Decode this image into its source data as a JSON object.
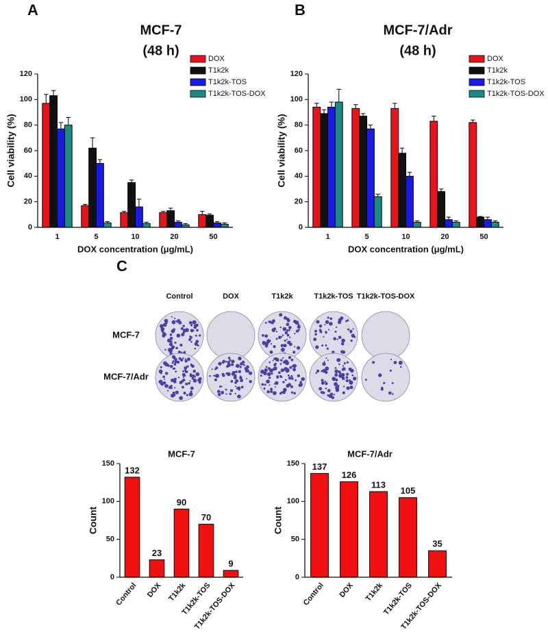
{
  "panel_labels": [
    "A",
    "B",
    "C"
  ],
  "colony_assay": {
    "columns": [
      "Control",
      "DOX",
      "T1k2k",
      "T1k2k-TOS",
      "T1k2k-TOS-DOX"
    ],
    "rows": [
      "MCF-7",
      "MCF-7/Adr"
    ]
  },
  "chart_data": [
    {
      "type": "bar",
      "title": "MCF-7",
      "subtitle": "(48 h)",
      "x_label": "DOX concentration (μg/mL)",
      "y_label": "Cell viability (%)",
      "categories": [
        "1",
        "5",
        "10",
        "20",
        "50"
      ],
      "legend": "upper right",
      "series": [
        {
          "name": "DOX",
          "color": "#e8141c",
          "values": [
            97,
            17,
            11.5,
            11.5,
            10
          ],
          "errors": [
            7,
            1,
            1,
            1,
            2.5
          ]
        },
        {
          "name": "T1k2k",
          "color": "#111111",
          "values": [
            103,
            62,
            35,
            13,
            9.5
          ],
          "errors": [
            4,
            8,
            2,
            2,
            1
          ]
        },
        {
          "name": "T1k2k-TOS",
          "color": "#1a1ae8",
          "values": [
            77,
            50,
            16,
            4,
            3.5
          ],
          "errors": [
            5,
            3,
            6,
            1,
            1
          ]
        },
        {
          "name": "T1k2k-TOS-DOX",
          "color": "#1a8a84",
          "values": [
            80,
            3.5,
            3,
            2,
            2.5
          ],
          "errors": [
            6,
            1,
            1,
            1,
            1
          ]
        }
      ],
      "ylim": [
        0,
        120
      ],
      "yticks": [
        0,
        20,
        40,
        60,
        80,
        100,
        120
      ]
    },
    {
      "type": "bar",
      "title": "MCF-7/Adr",
      "subtitle": "(48 h)",
      "x_label": "DOX concentration (μg/mL)",
      "y_label": "Cell viability (%)",
      "categories": [
        "1",
        "5",
        "10",
        "20",
        "50"
      ],
      "legend": "upper right",
      "series": [
        {
          "name": "DOX",
          "color": "#e8141c",
          "values": [
            94,
            93,
            93,
            83,
            82
          ],
          "errors": [
            3,
            3,
            4,
            4,
            2
          ]
        },
        {
          "name": "T1k2k",
          "color": "#111111",
          "values": [
            89,
            87,
            58,
            28,
            8
          ],
          "errors": [
            3,
            2,
            4,
            2,
            0.5
          ]
        },
        {
          "name": "T1k2k-TOS",
          "color": "#1a1ae8",
          "values": [
            94,
            77,
            40,
            6,
            6
          ],
          "errors": [
            4,
            3,
            3,
            2,
            2
          ]
        },
        {
          "name": "T1k2k-TOS-DOX",
          "color": "#1a8a84",
          "values": [
            98,
            24,
            4,
            4,
            4
          ],
          "errors": [
            10,
            2,
            1,
            1,
            1
          ]
        }
      ],
      "ylim": [
        0,
        120
      ],
      "yticks": [
        0,
        20,
        40,
        60,
        80,
        100,
        120
      ]
    },
    {
      "type": "bar",
      "title": "MCF-7",
      "y_label": "Count",
      "categories": [
        "Control",
        "DOX",
        "T1k2k",
        "T1k2k-TOS",
        "T1k2k-TOS-DOX"
      ],
      "values": [
        132,
        23,
        90,
        70,
        9
      ],
      "color": "#f01010",
      "ylim": [
        0,
        150
      ],
      "yticks": [
        0,
        50,
        100,
        150
      ]
    },
    {
      "type": "bar",
      "title": "MCF-7/Adr",
      "y_label": "Count",
      "categories": [
        "Control",
        "DOX",
        "T1k2k",
        "T1k2k-TOS",
        "T1k2k-TOS-DOX"
      ],
      "values": [
        137,
        126,
        113,
        105,
        35
      ],
      "color": "#f01010",
      "ylim": [
        0,
        150
      ],
      "yticks": [
        0,
        50,
        100,
        150
      ]
    }
  ]
}
